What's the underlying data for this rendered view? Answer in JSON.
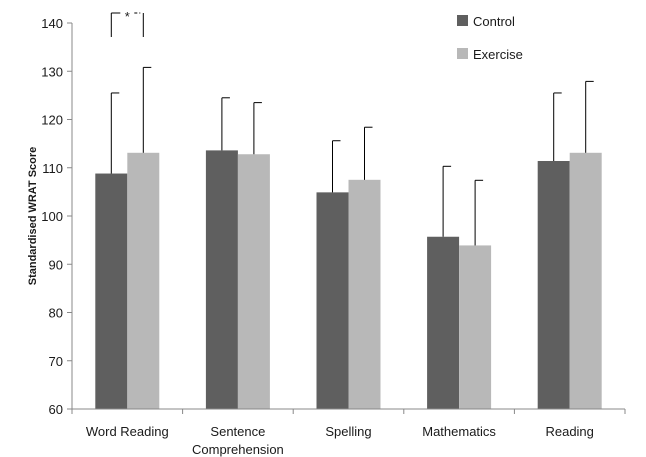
{
  "chart_data": {
    "type": "bar",
    "title": "",
    "xlabel": "",
    "ylabel": "Standardised WRAT Score",
    "ylim": [
      60,
      140
    ],
    "yticks": [
      60,
      70,
      80,
      90,
      100,
      110,
      120,
      130,
      140
    ],
    "grid": false,
    "legend_position": "top-right",
    "categories": [
      [
        "Word Reading"
      ],
      [
        "Sentence",
        "Comprehension"
      ],
      [
        "Spelling"
      ],
      [
        "Mathematics"
      ],
      [
        "Reading"
      ]
    ],
    "series": [
      {
        "name": "Control",
        "color": "#5f5f5f",
        "values": [
          108.8,
          113.6,
          104.9,
          95.7,
          111.4
        ],
        "error_upper": [
          125.5,
          124.5,
          115.6,
          110.3,
          125.5
        ]
      },
      {
        "name": "Exercise",
        "color": "#b8b8b8",
        "values": [
          113.1,
          112.8,
          107.5,
          93.9,
          113.1
        ],
        "error_upper": [
          130.8,
          123.5,
          118.4,
          107.4,
          127.9
        ]
      }
    ],
    "annotations": [
      {
        "text": "*",
        "category_index": 0,
        "type": "significance-bracket"
      }
    ]
  }
}
